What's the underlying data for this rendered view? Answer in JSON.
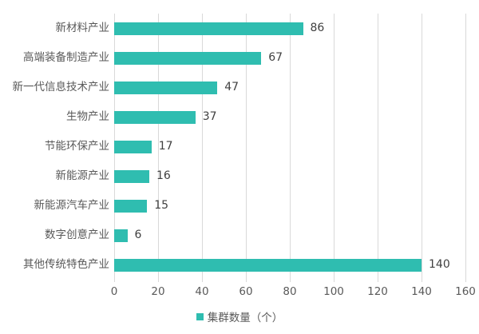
{
  "chart_data": {
    "type": "bar",
    "orientation": "horizontal",
    "categories": [
      "新材料产业",
      "高端装备制造产业",
      "新一代信息技术产业",
      "生物产业",
      "节能环保产业",
      "新能源产业",
      "新能源汽车产业",
      "数字创意产业",
      "其他传统特色产业"
    ],
    "values": [
      86,
      67,
      47,
      37,
      17,
      16,
      15,
      6,
      140
    ],
    "title": "",
    "xlabel": "",
    "ylabel": "",
    "xlim": [
      0,
      160
    ],
    "xticks": [
      0,
      20,
      40,
      60,
      80,
      100,
      120,
      140,
      160
    ],
    "grid": "vertical",
    "legend_position": "bottom",
    "legend": [
      "集群数量（个）"
    ],
    "colors": {
      "bar": "#2FBDB0",
      "gridline": "#D9D9D9",
      "category_label": "#595959",
      "tick_label": "#595959",
      "value_label": "#404040"
    }
  }
}
